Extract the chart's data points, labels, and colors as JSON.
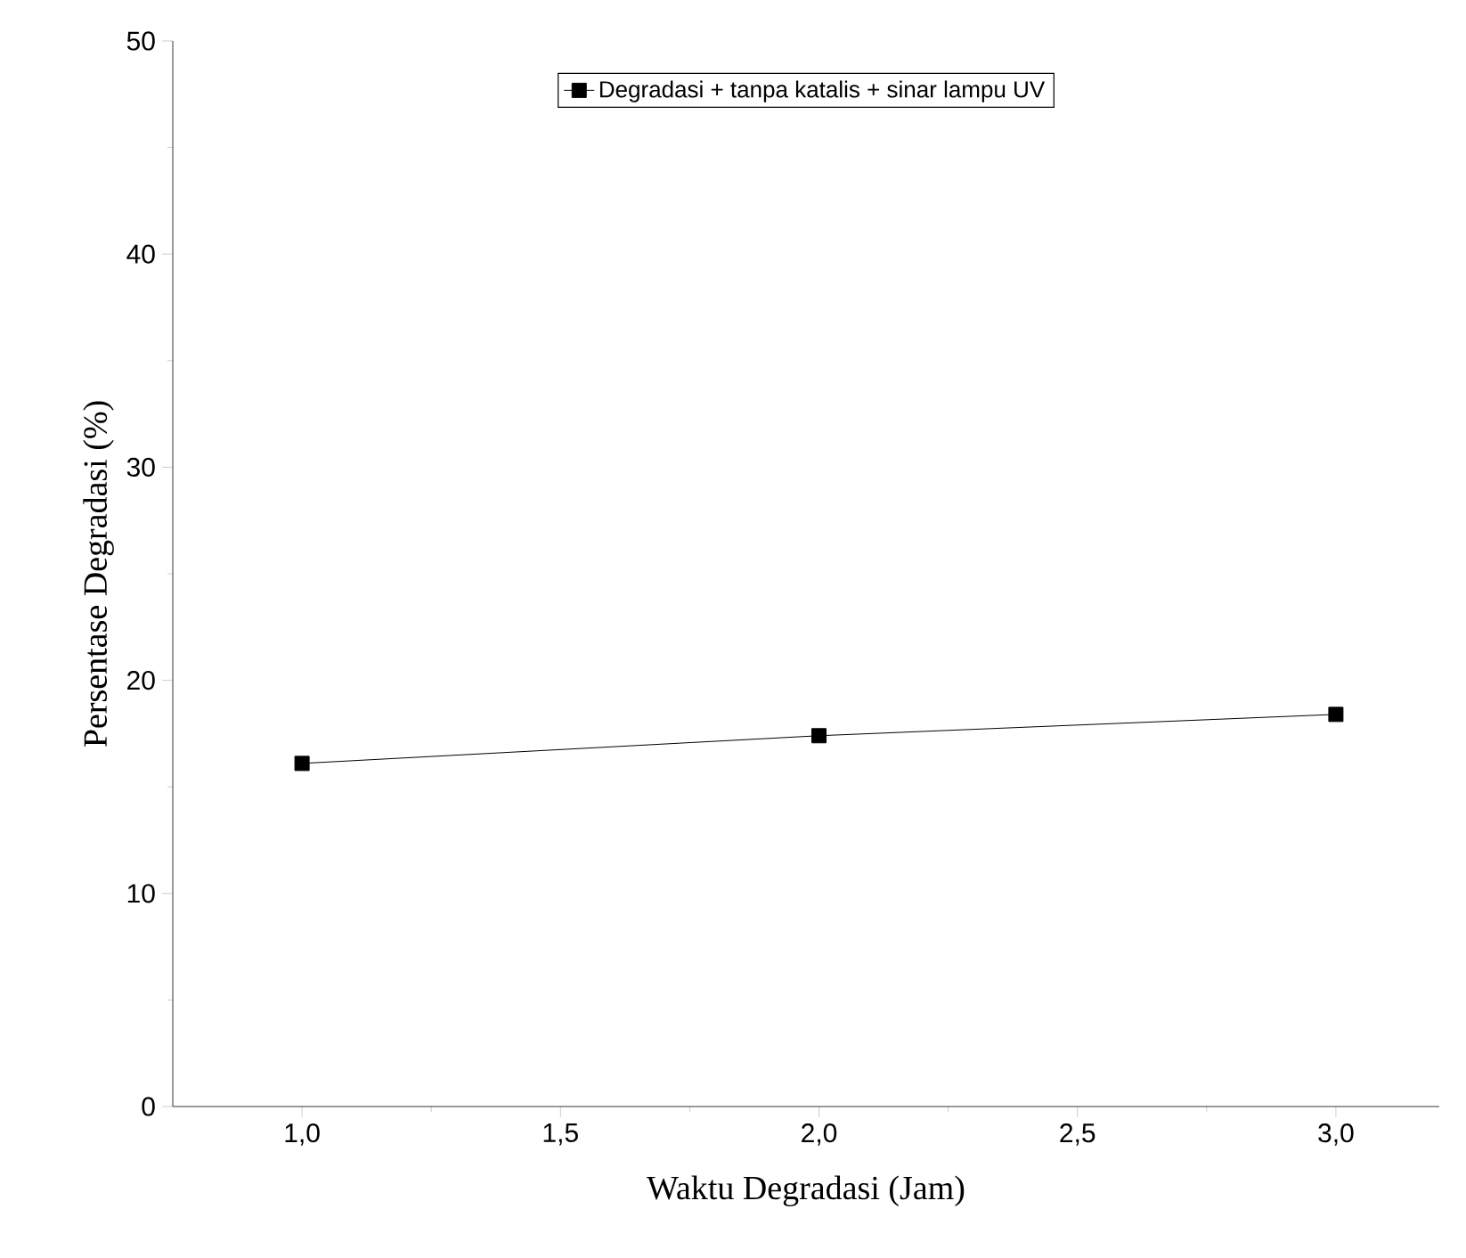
{
  "chart_data": {
    "type": "line",
    "xlabel": "Waktu Degradasi (Jam)",
    "ylabel": "Persentase Degradasi (%)",
    "x": [
      1,
      2,
      3
    ],
    "series": [
      {
        "name": "Degradasi + tanpa katalis + sinar lampu UV",
        "color": "#000000",
        "values": [
          16.1,
          17.4,
          18.4
        ]
      }
    ],
    "xlim": [
      0.75,
      3.2
    ],
    "ylim": [
      0,
      50
    ],
    "xticks": [
      {
        "value": 1,
        "label": "1,0"
      },
      {
        "value": 1.5,
        "label": "1,5"
      },
      {
        "value": 2,
        "label": "2,0"
      },
      {
        "value": 2.5,
        "label": "2,5"
      },
      {
        "value": 3,
        "label": "3,0"
      }
    ],
    "yticks": [
      0,
      10,
      20,
      30,
      40,
      50
    ],
    "legend": "top",
    "marker": "square",
    "line_style": "solid"
  }
}
